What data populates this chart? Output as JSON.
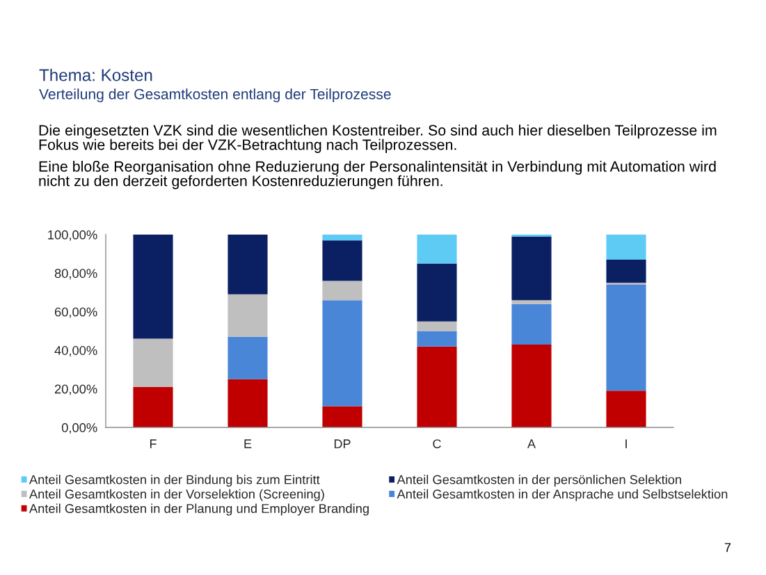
{
  "chart_data": {
    "type": "bar",
    "stacked": true,
    "title": "Thema: Kosten",
    "subtitle": "Verteilung der Gesamtkosten entlang der Teilprozesse",
    "annotations": [
      "Die eingesetzten VZK sind die wesentlichen Kostentreiber. So sind auch hier dieselben Teilprozesse im\nFokus wie bereits bei der VZK-Betrachtung nach Teilprozessen.",
      "Eine bloße Reorganisation ohne Reduzierung der Personalintensität in Verbindung mit Automation wird\nnicht zu den derzeit geforderten Kostenreduzierungen führen.",
      "7"
    ],
    "categories": [
      "F",
      "E",
      "DP",
      "C",
      "A",
      "I"
    ],
    "series": [
      {
        "name": "Anteil Gesamtkosten in der Planung und Employer Branding",
        "color": "#c00000",
        "values": [
          21,
          25,
          11,
          42,
          43,
          19
        ]
      },
      {
        "name": "Anteil Gesamtkosten in der Ansprache und Selbstselektion",
        "color": "#4a86d8",
        "values": [
          0,
          22,
          55,
          8,
          21,
          55
        ]
      },
      {
        "name": "Anteil Gesamtkosten in der Vorselektion (Screening)",
        "color": "#bfbfbf",
        "values": [
          25,
          22,
          10,
          5,
          2,
          1
        ]
      },
      {
        "name": "Anteil Gesamtkosten in der persönlichen Selektion",
        "color": "#0b2062",
        "values": [
          54,
          31,
          21,
          30,
          33,
          12
        ]
      },
      {
        "name": "Anteil Gesamtkosten in der Bindung bis zum Eintritt",
        "color": "#5ecbf5",
        "values": [
          0,
          0,
          3,
          15,
          1,
          13
        ]
      }
    ],
    "ylim": [
      0,
      100
    ],
    "yticks": [
      {
        "value": 0,
        "label": "0,00%"
      },
      {
        "value": 20,
        "label": "20,00%"
      },
      {
        "value": 40,
        "label": "40,00%"
      },
      {
        "value": 60,
        "label": "60,00%"
      },
      {
        "value": 80,
        "label": "80,00%"
      },
      {
        "value": 100,
        "label": "100,00%"
      }
    ],
    "legend": "bottom"
  }
}
